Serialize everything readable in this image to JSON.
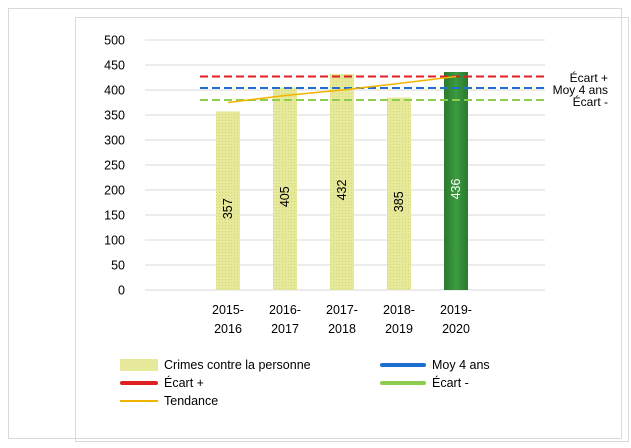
{
  "chart_data": {
    "type": "bar",
    "categories": [
      "2015-\n2016",
      "2016-\n2017",
      "2017-\n2018",
      "2018-\n2019",
      "2019-\n2020"
    ],
    "series": [
      {
        "name": "Crimes contre la personne",
        "values": [
          357,
          405,
          432,
          385,
          436
        ],
        "colors": [
          "#e8ea9a",
          "#e8ea9a",
          "#e8ea9a",
          "#e8ea9a",
          "#2e7d32"
        ]
      },
      {
        "name": "Tendance",
        "type": "line",
        "color": "#f0b400",
        "values": [
          375,
          389,
          400,
          413,
          427
        ]
      }
    ],
    "reference_lines": [
      {
        "name": "Écart +",
        "value": 427,
        "color": "#e02020",
        "dash": true
      },
      {
        "name": "Moy 4 ans",
        "value": 404,
        "color": "#1f6fd1",
        "dash": true
      },
      {
        "name": "Écart -",
        "value": 380,
        "color": "#8dcc4e",
        "dash": true
      }
    ],
    "ylim": [
      0,
      500
    ],
    "yticks": [
      0,
      50,
      100,
      150,
      200,
      250,
      300,
      350,
      400,
      450,
      500
    ],
    "grid": true,
    "legend_position": "bottom",
    "title": "",
    "xlabel": "",
    "ylabel": ""
  },
  "legend": {
    "items": [
      {
        "label": "Crimes contre la personne",
        "kind": "bar",
        "color": "#e8ea9a"
      },
      {
        "label": "Moy 4 ans",
        "kind": "thickline",
        "color": "#1f6fd1"
      },
      {
        "label": "Écart +",
        "kind": "thickline",
        "color": "#e02020"
      },
      {
        "label": "Écart -",
        "kind": "thickline",
        "color": "#8dcc4e"
      },
      {
        "label": "Tendance",
        "kind": "thinline",
        "color": "#f0b400"
      }
    ]
  }
}
